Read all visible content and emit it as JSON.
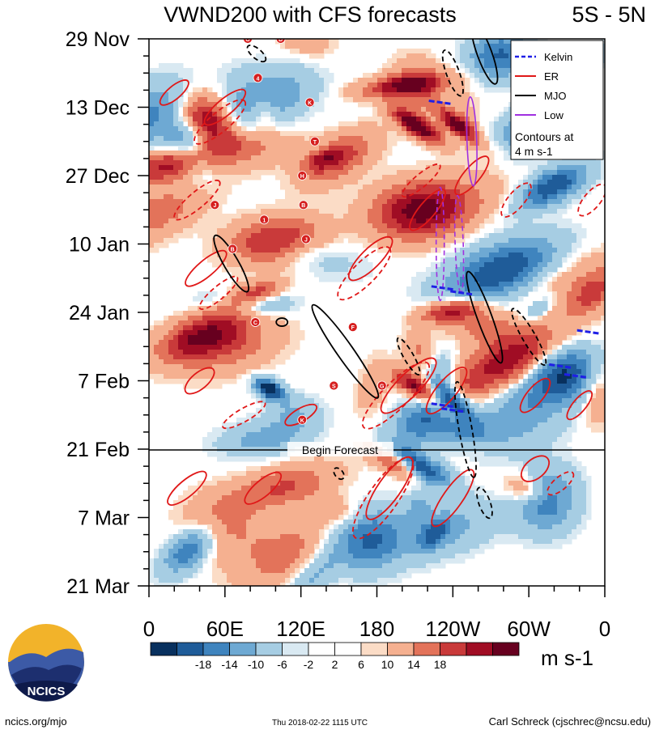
{
  "header": {
    "title": "VWND200 with CFS forecasts",
    "region": "5S - 5N"
  },
  "legend": {
    "items": [
      {
        "label": "Kelvin",
        "color": "#1f1fe6",
        "dashed": true
      },
      {
        "label": "ER",
        "color": "#e01818",
        "dashed": false
      },
      {
        "label": "MJO",
        "color": "#000000",
        "dashed": false
      },
      {
        "label": "Low",
        "color": "#a030e0",
        "dashed": false
      }
    ],
    "note_line1": "Contours at",
    "note_line2": "4 m s-1"
  },
  "forecast_label": "Begin Forecast",
  "colorbar": {
    "ticks": [
      "-18",
      "-14",
      "-10",
      "-6",
      "-2",
      "2",
      "6",
      "10",
      "14",
      "18"
    ],
    "colors": [
      "#08305e",
      "#1f5c99",
      "#3f84be",
      "#6ea9d3",
      "#a6cde3",
      "#d9e9f2",
      "#ffffff",
      "#fbdcc6",
      "#f5b090",
      "#e3735a",
      "#c93a3a",
      "#a00d24",
      "#67001f"
    ],
    "unit": "m s-1"
  },
  "chart_data": {
    "type": "heatmap",
    "title": "VWND200 with CFS forecasts",
    "subtitle": "5S - 5N",
    "x_tick_labels": [
      "0",
      "60E",
      "120E",
      "180",
      "120W",
      "60W",
      "0"
    ],
    "y_tick_labels": [
      "29 Nov",
      "13 Dec",
      "27 Dec",
      "10 Jan",
      "24 Jan",
      "7 Feb",
      "21 Feb",
      "7 Mar",
      "21 Mar"
    ],
    "xlim": [
      0,
      360
    ],
    "ylim": [
      "29 Nov",
      "21 Mar"
    ],
    "forecast_start": "21 Feb",
    "contour_interval": "4 m s-1",
    "storm_markers": [
      {
        "letter": "O",
        "lon": 78,
        "date": "29 Nov"
      },
      {
        "letter": "D",
        "lon": 104,
        "date": "29 Nov"
      },
      {
        "letter": "4",
        "lon": 86,
        "date": "7 Dec"
      },
      {
        "letter": "K",
        "lon": 127,
        "date": "12 Dec"
      },
      {
        "letter": "T",
        "lon": 131,
        "date": "20 Dec"
      },
      {
        "letter": "H",
        "lon": 121,
        "date": "27 Dec"
      },
      {
        "letter": "J",
        "lon": 52,
        "date": "2 Jan"
      },
      {
        "letter": "B",
        "lon": 122,
        "date": "2 Jan"
      },
      {
        "letter": "1",
        "lon": 91,
        "date": "5 Jan"
      },
      {
        "letter": "J",
        "lon": 124,
        "date": "9 Jan"
      },
      {
        "letter": "B",
        "lon": 66,
        "date": "11 Jan"
      },
      {
        "letter": "C",
        "lon": 84,
        "date": "26 Jan"
      },
      {
        "letter": "F",
        "lon": 161,
        "date": "27 Jan"
      },
      {
        "letter": "G",
        "lon": 184,
        "date": "8 Feb"
      },
      {
        "letter": "S",
        "lon": 146,
        "date": "8 Feb"
      },
      {
        "letter": "K",
        "lon": 121,
        "date": "15 Feb"
      }
    ]
  },
  "footer": {
    "logo_text": "NCICS",
    "url": "ncics.org/mjo",
    "timestamp": "Thu 2018-02-22 1115 UTC",
    "author": "Carl Schreck (cjschrec@ncsu.edu)"
  }
}
